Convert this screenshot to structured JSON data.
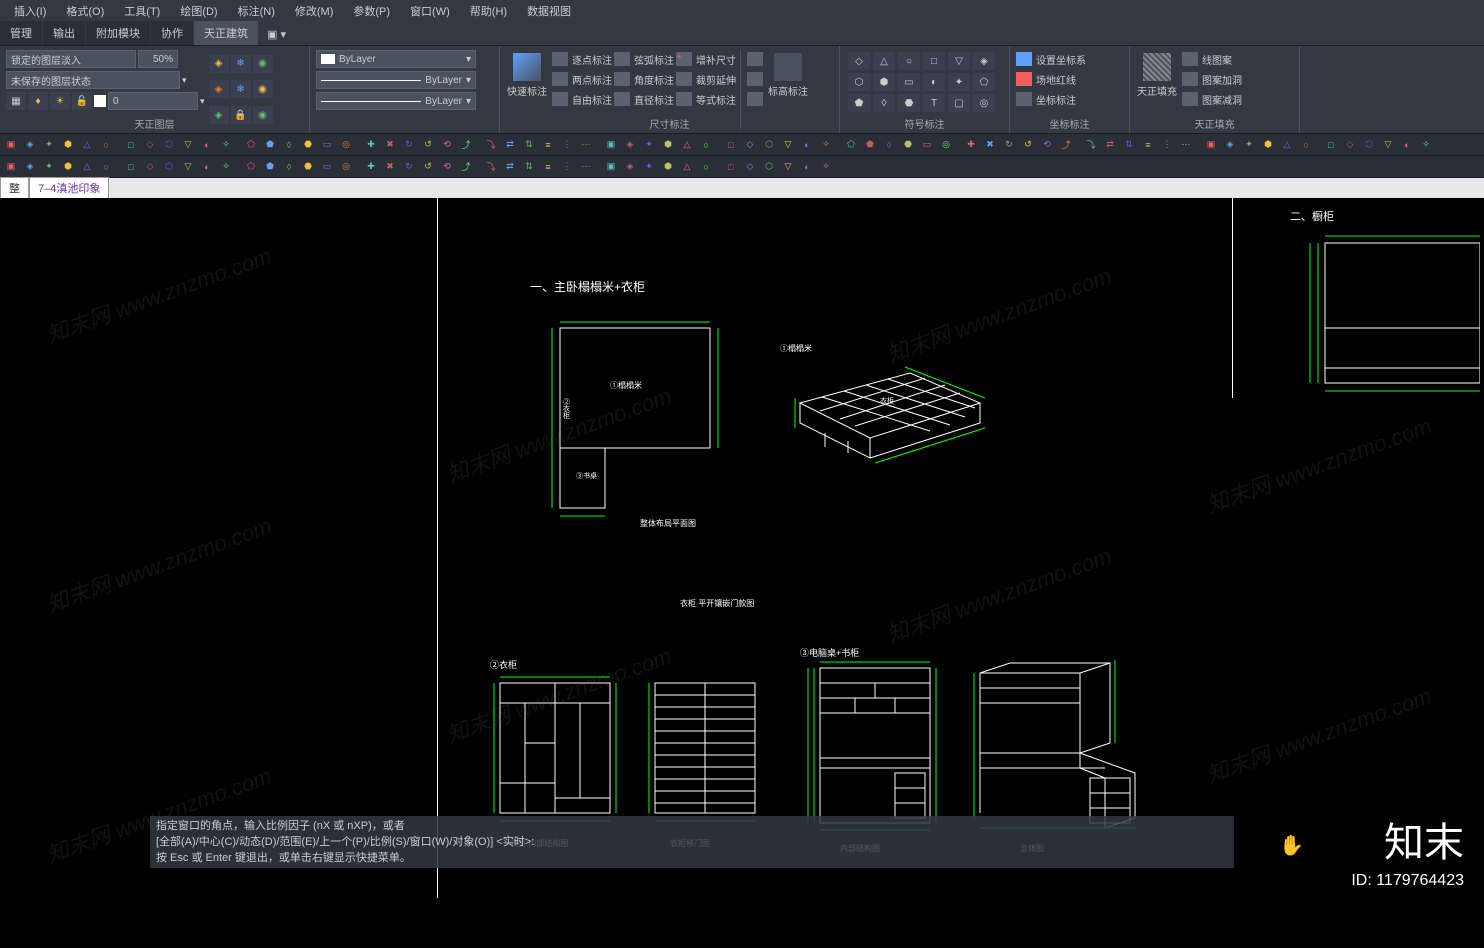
{
  "colors": {
    "ribbon_bg": "#333842",
    "panel_border": "#4a5260",
    "input_bg": "#4a5260",
    "canvas_bg": "#000000",
    "drawing_line": "#ffffff",
    "dimension": "#00ff00",
    "filetab_bg": "#e8e8e8",
    "filetab_text": "#7030a0",
    "cmd_bg": "rgba(50,55,65,0.85)"
  },
  "menubar": [
    "插入(I)",
    "格式(O)",
    "工具(T)",
    "绘图(D)",
    "标注(N)",
    "修改(M)",
    "参数(P)",
    "窗口(W)",
    "帮助(H)",
    "数据视图"
  ],
  "tabs": {
    "items": [
      "管理",
      "输出",
      "附加模块",
      "协作",
      "天正建筑"
    ],
    "active_index": 4
  },
  "ribbon": {
    "layer_panel": {
      "title": "天正图层",
      "lock_input": "锁定的图层淡入",
      "percent": "50%",
      "state": "未保存的图层状态",
      "current": "0",
      "icon_colors": [
        "#f0c040",
        "#60a0ff",
        "#f06060",
        "#60c060",
        "#f08030",
        "#a060f0"
      ]
    },
    "props_panel": {
      "bylayer": "ByLayer",
      "swatch": "#ffffff"
    },
    "dim_panel": {
      "title": "尺寸标注",
      "quick": "快速标注",
      "cmds": [
        [
          "逐点标注",
          "弦弧标注",
          "增补尺寸"
        ],
        [
          "两点标注",
          "角度标注",
          "裁剪延伸"
        ],
        [
          "自由标注",
          "直径标注",
          "等式标注"
        ]
      ],
      "elevation": "标高标注"
    },
    "symbol_panel": {
      "title": "符号标注"
    },
    "coord_panel": {
      "title": "坐标标注",
      "cmds": [
        "设置坐标系",
        "场地红线",
        "坐标标注"
      ]
    },
    "fill_panel": {
      "title": "天正填充",
      "btn": "天正填充",
      "cmds": [
        "线图案",
        "图案加洞",
        "图案减洞"
      ]
    }
  },
  "toolbar_colors": [
    "#f06060",
    "#60a0ff",
    "#60c060",
    "#f0c040",
    "#a060f0",
    "#f08030",
    "#60c0c0",
    "#c06060",
    "#6060f0",
    "#c0c060",
    "#f060c0",
    "#60f060"
  ],
  "filetabs": [
    "整",
    "7–4滇池印象"
  ],
  "drawing": {
    "section1_title": "一、主卧榻榻米+衣柜",
    "section2_title": "二、橱柜",
    "labels": {
      "tatami_iso": "①榻榻米",
      "tatami_plan": "①榻榻米",
      "wardrobe_side": "②衣柜",
      "layout_caption": "整体布局平面图",
      "wardrobe_caption": "衣柜 平开镶嵌门款图",
      "wardrobe2": "②衣柜",
      "desk_label": "③电脑桌+书柜",
      "cap1": "衣柜 内部结构图",
      "cap2": "衣柜移门图",
      "cap3": "内部结构图",
      "cap4": "立体图",
      "ygui": "衣柜"
    }
  },
  "cmdline": [
    "指定窗口的角点，输入比例因子 (nX 或 nXP)，或者",
    "[全部(A)/中心(C)/动态(D)/范围(E)/上一个(P)/比例(S)/窗口(W)/对象(O)] <实时>:",
    "按 Esc 或 Enter 键退出，或单击右键显示快捷菜单。"
  ],
  "logo": "知末",
  "id": "ID: 1179764423",
  "watermark": "知末网 www.znzmo.com"
}
